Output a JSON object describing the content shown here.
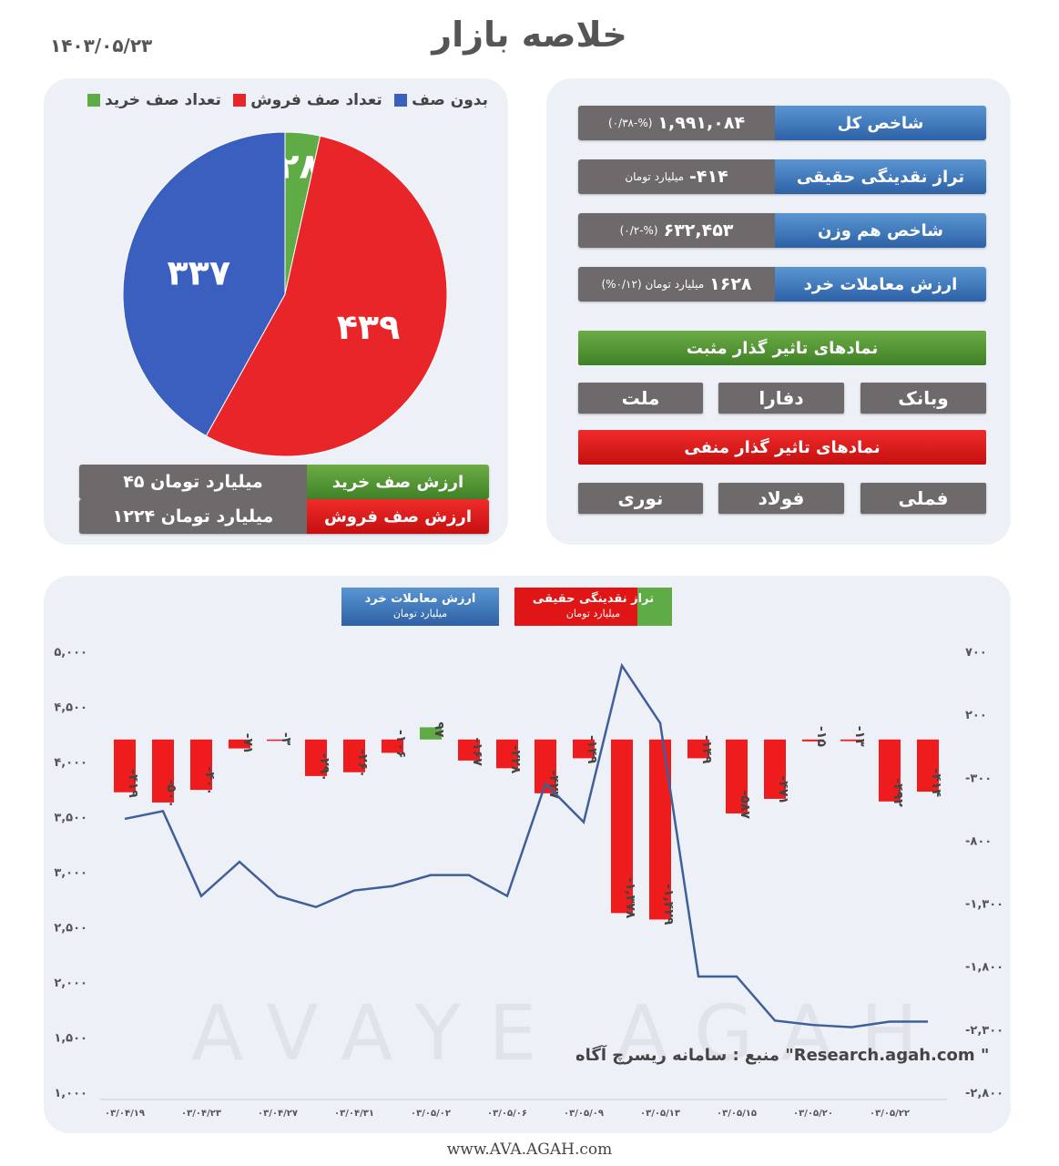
{
  "header": {
    "title": "خلاصه بازار",
    "date": "۱۴۰۳/۰۵/۲۳"
  },
  "queue": {
    "legend": [
      {
        "label": "بدون صف",
        "color": "#3a5fbf"
      },
      {
        "label": "تعداد صف فروش",
        "color": "#e8262a"
      },
      {
        "label": "تعداد صف خرید",
        "color": "#5fab45"
      }
    ],
    "pie": [
      {
        "name": "بدون صف",
        "value": 337,
        "label": "۳۳۷",
        "color": "#3a5fbf"
      },
      {
        "name": "تعداد صف فروش",
        "value": 439,
        "label": "۴۳۹",
        "color": "#e8262a"
      },
      {
        "name": "تعداد صف خرید",
        "value": 28,
        "label": "۲۸",
        "color": "#5fab45"
      }
    ],
    "buy_value_label": "ارزش صف خرید",
    "buy_value": "۴۵ میلیارد تومان",
    "sell_value_label": "ارزش صف فروش",
    "sell_value": "۱۲۲۴ میلیارد تومان"
  },
  "stats": [
    {
      "label": "شاخص کل",
      "value": "۱,۹۹۱,۰۸۴",
      "note": "(۰/۳۸-%)"
    },
    {
      "label": "تراز نقدینگی حقیقی",
      "value": "-۴۱۴",
      "note": "میلیارد تومان"
    },
    {
      "label": "شاخص هم وزن",
      "value": "۶۳۲,۴۵۳",
      "note": "(۰/۲-%)"
    },
    {
      "label": "ارزش معاملات خرد",
      "value": "۱۶۲۸",
      "note": "میلیارد تومان (۰/۱۲%)"
    }
  ],
  "positive": {
    "title": "نمادهای تاثیر گذار مثبت",
    "symbols": [
      "وبانک",
      "دفارا",
      "ملت"
    ]
  },
  "negative": {
    "title": "نمادهای تاثیر گذار منفی",
    "symbols": [
      "فملی",
      "فولاد",
      "نوری"
    ]
  },
  "chart_legend": {
    "value_title": "ارزش معاملات خرد",
    "value_unit": "میلیارد تومان",
    "flow_title": "تراز نقدینگی حقیقی",
    "flow_unit": "میلیارد تومان"
  },
  "chart_data": {
    "type": "bar",
    "categories": [
      "۰۳/۰۴/۱۹",
      "",
      "۰۳/۰۴/۲۳",
      "",
      "۰۳/۰۴/۲۷",
      "",
      "۰۳/۰۴/۳۱",
      "",
      "۰۳/۰۵/۰۲",
      "",
      "۰۳/۰۵/۰۶",
      "",
      "۰۳/۰۵/۰۹",
      "",
      "۰۳/۰۵/۱۳",
      "",
      "۰۳/۰۵/۱۵",
      "",
      "۰۳/۰۵/۲۰",
      "",
      "۰۳/۰۵/۲۲",
      ""
    ],
    "series": [
      {
        "name": "تراز نقدینگی حقیقی",
        "axis": "right",
        "values": [
          -419,
          -500,
          -400,
          -71,
          -3,
          -290,
          -260,
          -106,
          97,
          -167,
          -228,
          -427,
          -149,
          -1378,
          -1429,
          -149,
          -587,
          -471,
          -15,
          -13,
          -492,
          -414
        ],
        "labels": [
          "-۴۱۹",
          "-۵۰۰",
          "-۴۰۰",
          "-۷۱",
          "-۳",
          "-۲۹۰",
          "-۲۶۰",
          "-۱۰۶",
          "۹۷",
          "-۱۶۷",
          "-۲۲۸",
          "-۴۲۷",
          "-۱۴۹",
          "-۱,۳۷۸",
          "-۱,۴۲۹",
          "-۱۴۹",
          "-۵۸۷",
          "-۴۷۱",
          "-۱۵",
          "-۱۳",
          "-۴۹۲",
          "-۴۱۴"
        ]
      },
      {
        "name": "ارزش معاملات خرد",
        "axis": "left",
        "type": "line",
        "values": [
          3480,
          3550,
          2780,
          3090,
          2780,
          2680,
          2830,
          2870,
          2970,
          2970,
          2780,
          3800,
          3450,
          4870,
          4350,
          2050,
          2050,
          1650,
          1610,
          1590,
          1640,
          1640
        ]
      }
    ],
    "left_ticks": [
      "۱,۰۰۰",
      "۱,۵۰۰",
      "۲,۰۰۰",
      "۲,۵۰۰",
      "۳,۰۰۰",
      "۳,۵۰۰",
      "۴,۰۰۰",
      "۴,۵۰۰",
      "۵,۰۰۰"
    ],
    "right_ticks": [
      "-۲,۸۰۰",
      "-۲,۳۰۰",
      "-۱,۸۰۰",
      "-۱,۳۰۰",
      "-۸۰۰",
      "-۳۰۰",
      "۲۰۰",
      "۷۰۰"
    ],
    "ylim_left": [
      1000,
      5000
    ],
    "ylim_right": [
      -2800,
      700
    ]
  },
  "source": "منبع : سامانه ریسرچ آگاه \"Research.agah.com \"",
  "watermark": "AVAYE AGAH",
  "footer": "www.AVA.AGAH.com"
}
